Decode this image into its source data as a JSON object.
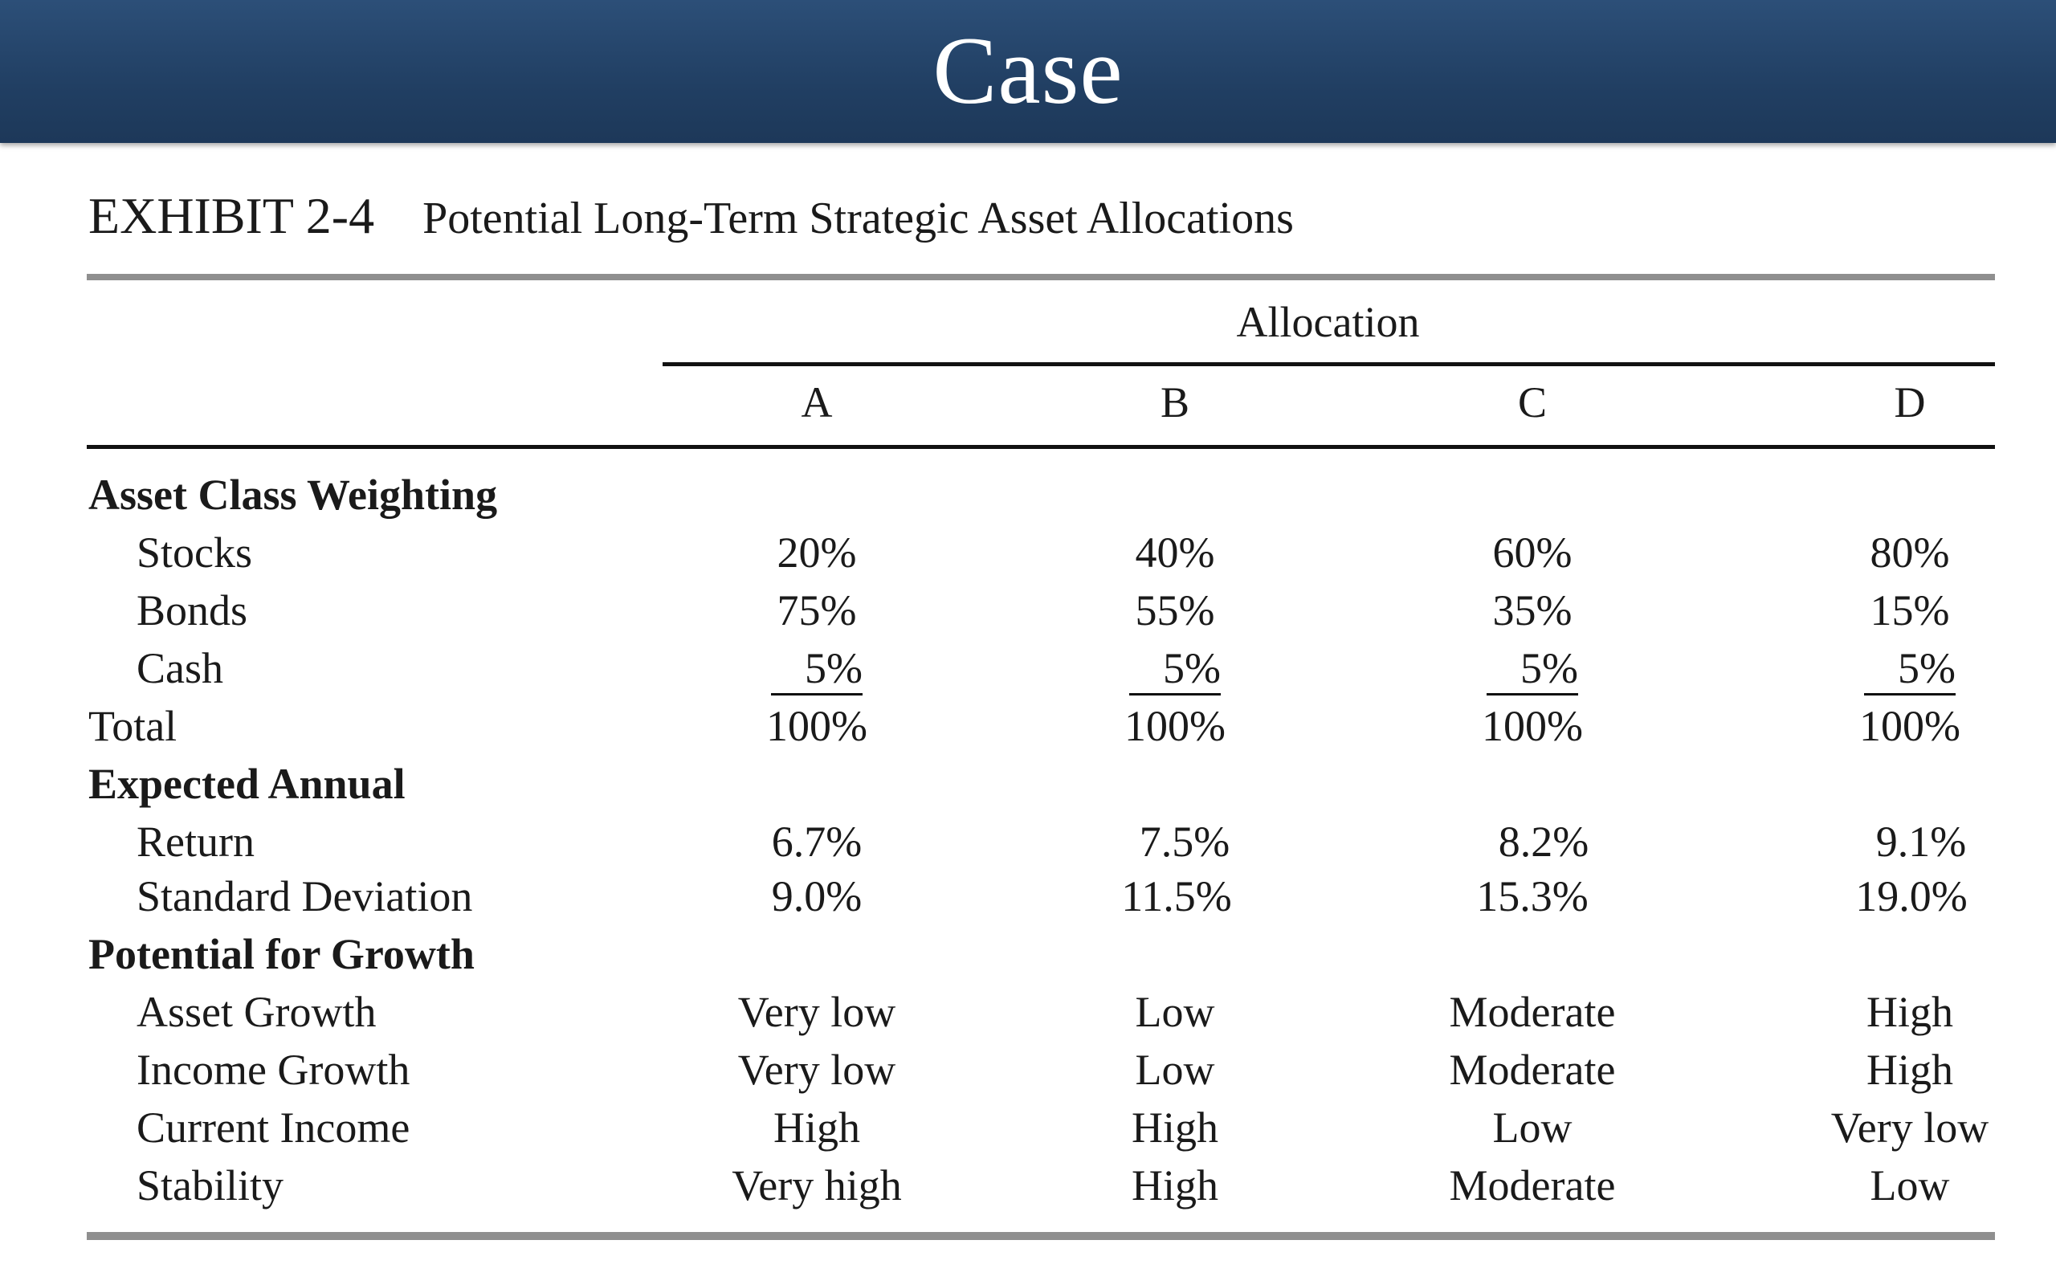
{
  "banner": {
    "title": "Case"
  },
  "exhibit": {
    "number": "EXHIBIT 2-4",
    "title": "Potential Long-Term Strategic Asset Allocations"
  },
  "table": {
    "group_header": "Allocation",
    "columns": [
      "A",
      "B",
      "C",
      "D"
    ],
    "sections": {
      "asset_class": {
        "heading": "Asset Class Weighting",
        "stocks": {
          "label": "Stocks",
          "values": [
            "20%",
            "40%",
            "60%",
            "80%"
          ]
        },
        "bonds": {
          "label": "Bonds",
          "values": [
            "75%",
            "55%",
            "35%",
            "15%"
          ]
        },
        "cash": {
          "label": "Cash",
          "values": [
            "5%",
            "5%",
            "5%",
            "5%"
          ]
        },
        "total": {
          "label": "Total",
          "values": [
            "100%",
            "100%",
            "100%",
            "100%"
          ]
        }
      },
      "expected": {
        "heading": "Expected Annual",
        "return": {
          "label": "Return",
          "values": [
            "6.7%",
            "7.5%",
            "8.2%",
            "9.1%"
          ]
        },
        "std_dev": {
          "label": "Standard Deviation",
          "values": [
            "9.0%",
            "11.5%",
            "15.3%",
            "19.0%"
          ]
        }
      },
      "growth": {
        "heading": "Potential for Growth",
        "asset_growth": {
          "label": "Asset Growth",
          "values": [
            "Very low",
            "Low",
            "Moderate",
            "High"
          ]
        },
        "income_growth": {
          "label": "Income Growth",
          "values": [
            "Very low",
            "Low",
            "Moderate",
            "High"
          ]
        },
        "current_income": {
          "label": "Current Income",
          "values": [
            "High",
            "High",
            "Low",
            "Very low"
          ]
        },
        "stability": {
          "label": "Stability",
          "values": [
            "Very high",
            "High",
            "Moderate",
            "Low"
          ]
        }
      }
    }
  }
}
